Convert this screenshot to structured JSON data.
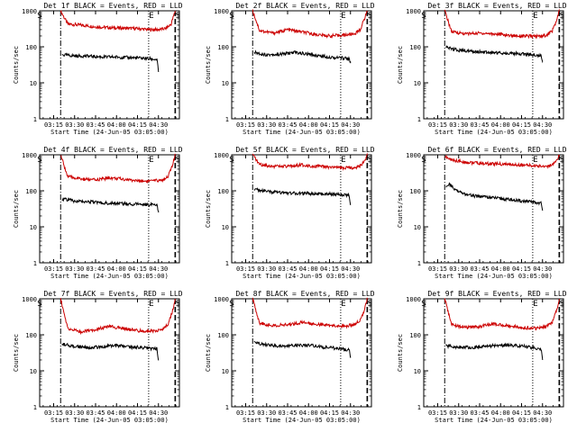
{
  "chart_data": [
    {
      "type": "line",
      "title": "Det 1f BLACK = Events, RED = LLD",
      "xlabel": "Start Time (24-Jun-05 03:05:00)",
      "ylabel": "Counts/sec",
      "yscale": "log",
      "ylim": [
        1,
        1000
      ],
      "xlim": [
        0,
        100
      ],
      "y_ticks": [
        "1",
        "10",
        "100",
        "1000"
      ],
      "x_tick_labels": [
        "03:15",
        "03:30",
        "03:45",
        "04:00",
        "04:15",
        "04:30"
      ],
      "x_tick_values": [
        10,
        25,
        40,
        55,
        70,
        85
      ],
      "markers": [
        {
          "label": "S",
          "x": 0
        },
        {
          "label": "E",
          "x": 80
        },
        {
          "label": "S",
          "x": 99
        }
      ],
      "vlines": [
        {
          "x": 15,
          "style": "dash-dot"
        },
        {
          "x": 78,
          "style": "dotted"
        },
        {
          "x": 97,
          "style": "dashed"
        }
      ],
      "series": [
        {
          "name": "RED = LLD",
          "color": "#cc0000",
          "x": [
            15,
            20,
            30,
            40,
            50,
            60,
            70,
            78,
            85,
            90,
            94,
            97
          ],
          "values": [
            1000,
            430,
            400,
            360,
            340,
            330,
            320,
            300,
            300,
            320,
            420,
            1000
          ]
        },
        {
          "name": "BLACK = Events",
          "color": "#000000",
          "x": [
            16,
            25,
            35,
            45,
            55,
            65,
            75,
            84,
            85
          ],
          "values": [
            60,
            56,
            55,
            52,
            52,
            50,
            48,
            44,
            20
          ]
        }
      ]
    },
    {
      "type": "line",
      "title": "Det 2f BLACK = Events, RED = LLD",
      "xlabel": "Start Time (24-Jun-05 03:05:00)",
      "ylabel": "Counts/sec",
      "yscale": "log",
      "ylim": [
        1,
        1000
      ],
      "xlim": [
        0,
        100
      ],
      "y_ticks": [
        "1",
        "10",
        "100",
        "1000"
      ],
      "x_tick_labels": [
        "03:15",
        "03:30",
        "03:45",
        "04:00",
        "04:15",
        "04:30"
      ],
      "x_tick_values": [
        10,
        25,
        40,
        55,
        70,
        85
      ],
      "markers": [
        {
          "label": "S",
          "x": 0
        },
        {
          "label": "E",
          "x": 80
        },
        {
          "label": "S",
          "x": 99
        }
      ],
      "vlines": [
        {
          "x": 15,
          "style": "dash-dot"
        },
        {
          "x": 78,
          "style": "dotted"
        },
        {
          "x": 97,
          "style": "dashed"
        }
      ],
      "series": [
        {
          "name": "RED = LLD",
          "color": "#cc0000",
          "x": [
            15,
            20,
            30,
            40,
            50,
            60,
            70,
            80,
            88,
            92,
            95,
            97
          ],
          "values": [
            1000,
            280,
            240,
            300,
            260,
            220,
            200,
            210,
            230,
            300,
            600,
            1000
          ]
        },
        {
          "name": "BLACK = Events",
          "color": "#000000",
          "x": [
            16,
            25,
            35,
            45,
            55,
            65,
            75,
            84,
            85
          ],
          "values": [
            70,
            60,
            62,
            70,
            62,
            55,
            50,
            48,
            35
          ]
        }
      ]
    },
    {
      "type": "line",
      "title": "Det 3f BLACK = Events, RED = LLD",
      "xlabel": "Start Time (24-Jun-05 03:05:00)",
      "ylabel": "Counts/sec",
      "yscale": "log",
      "ylim": [
        1,
        1000
      ],
      "xlim": [
        0,
        100
      ],
      "y_ticks": [
        "1",
        "10",
        "100",
        "1000"
      ],
      "x_tick_labels": [
        "03:15",
        "03:30",
        "03:45",
        "04:00",
        "04:15",
        "04:30"
      ],
      "x_tick_values": [
        10,
        25,
        40,
        55,
        70,
        85
      ],
      "markers": [
        {
          "label": "S",
          "x": 0
        },
        {
          "label": "E",
          "x": 80
        },
        {
          "label": "S",
          "x": 99
        }
      ],
      "vlines": [
        {
          "x": 15,
          "style": "dash-dot"
        },
        {
          "x": 78,
          "style": "dotted"
        },
        {
          "x": 97,
          "style": "dashed"
        }
      ],
      "series": [
        {
          "name": "RED = LLD",
          "color": "#cc0000",
          "x": [
            15,
            20,
            30,
            40,
            50,
            60,
            70,
            80,
            88,
            92,
            95,
            97
          ],
          "values": [
            1000,
            260,
            230,
            240,
            230,
            210,
            200,
            195,
            210,
            280,
            520,
            1000
          ]
        },
        {
          "name": "BLACK = Events",
          "color": "#000000",
          "x": [
            16,
            25,
            35,
            45,
            55,
            65,
            75,
            84,
            85
          ],
          "values": [
            95,
            80,
            75,
            70,
            68,
            65,
            62,
            58,
            40
          ]
        }
      ]
    },
    {
      "type": "line",
      "title": "Det 4f BLACK = Events, RED = LLD",
      "xlabel": "Start Time (24-Jun-05 03:05:00)",
      "ylabel": "Counts/sec",
      "yscale": "log",
      "ylim": [
        1,
        1000
      ],
      "xlim": [
        0,
        100
      ],
      "y_ticks": [
        "1",
        "10",
        "100",
        "1000"
      ],
      "x_tick_labels": [
        "03:15",
        "03:30",
        "03:45",
        "04:00",
        "04:15",
        "04:30"
      ],
      "x_tick_values": [
        10,
        25,
        40,
        55,
        70,
        85
      ],
      "markers": [
        {
          "label": "S",
          "x": 0
        },
        {
          "label": "E",
          "x": 80
        },
        {
          "label": "S",
          "x": 99
        }
      ],
      "vlines": [
        {
          "x": 15,
          "style": "dash-dot"
        },
        {
          "x": 78,
          "style": "dotted"
        },
        {
          "x": 97,
          "style": "dashed"
        }
      ],
      "series": [
        {
          "name": "RED = LLD",
          "color": "#cc0000",
          "x": [
            15,
            20,
            30,
            40,
            50,
            60,
            70,
            80,
            88,
            92,
            95,
            97
          ],
          "values": [
            1000,
            250,
            210,
            200,
            230,
            210,
            190,
            185,
            200,
            260,
            500,
            1000
          ]
        },
        {
          "name": "BLACK = Events",
          "color": "#000000",
          "x": [
            16,
            25,
            35,
            45,
            55,
            65,
            75,
            84,
            85
          ],
          "values": [
            60,
            52,
            50,
            46,
            45,
            43,
            42,
            40,
            25
          ]
        }
      ]
    },
    {
      "type": "line",
      "title": "Det 5f BLACK = Events, RED = LLD",
      "xlabel": "Start Time (24-Jun-05 03:05:00)",
      "ylabel": "Counts/sec",
      "yscale": "log",
      "ylim": [
        1,
        1000
      ],
      "xlim": [
        0,
        100
      ],
      "y_ticks": [
        "1",
        "10",
        "100",
        "1000"
      ],
      "x_tick_labels": [
        "03:15",
        "03:30",
        "03:45",
        "04:00",
        "04:15",
        "04:30"
      ],
      "x_tick_values": [
        10,
        25,
        40,
        55,
        70,
        85
      ],
      "markers": [
        {
          "label": "S",
          "x": 0
        },
        {
          "label": "E",
          "x": 80
        },
        {
          "label": "S",
          "x": 99
        }
      ],
      "vlines": [
        {
          "x": 15,
          "style": "dash-dot"
        },
        {
          "x": 78,
          "style": "dotted"
        },
        {
          "x": 97,
          "style": "dashed"
        }
      ],
      "series": [
        {
          "name": "RED = LLD",
          "color": "#cc0000",
          "x": [
            15,
            20,
            30,
            40,
            50,
            60,
            70,
            80,
            88,
            92,
            95,
            97
          ],
          "values": [
            1000,
            540,
            480,
            470,
            520,
            480,
            450,
            430,
            440,
            500,
            650,
            1000
          ]
        },
        {
          "name": "BLACK = Events",
          "color": "#000000",
          "x": [
            16,
            25,
            35,
            45,
            55,
            65,
            75,
            84,
            85
          ],
          "values": [
            110,
            95,
            88,
            85,
            84,
            82,
            80,
            75,
            40
          ]
        }
      ]
    },
    {
      "type": "line",
      "title": "Det 6f BLACK = Events, RED = LLD",
      "xlabel": "Start Time (24-Jun-05 03:05:00)",
      "ylabel": "Counts/sec",
      "yscale": "log",
      "ylim": [
        1,
        1000
      ],
      "xlim": [
        0,
        100
      ],
      "y_ticks": [
        "1",
        "10",
        "100",
        "1000"
      ],
      "x_tick_labels": [
        "03:15",
        "03:30",
        "03:45",
        "04:00",
        "04:15",
        "04:30"
      ],
      "x_tick_values": [
        10,
        25,
        40,
        55,
        70,
        85
      ],
      "markers": [
        {
          "label": "S",
          "x": 0
        },
        {
          "label": "E",
          "x": 80
        },
        {
          "label": "S",
          "x": 99
        }
      ],
      "vlines": [
        {
          "x": 15,
          "style": "dash-dot"
        },
        {
          "x": 78,
          "style": "dotted"
        },
        {
          "x": 97,
          "style": "dashed"
        }
      ],
      "series": [
        {
          "name": "RED = LLD",
          "color": "#cc0000",
          "x": [
            15,
            20,
            30,
            40,
            50,
            60,
            70,
            80,
            88,
            92,
            95,
            97
          ],
          "values": [
            900,
            720,
            620,
            580,
            560,
            540,
            520,
            490,
            480,
            520,
            640,
            1000
          ]
        },
        {
          "name": "BLACK = Events",
          "color": "#000000",
          "x": [
            16,
            18,
            22,
            28,
            35,
            45,
            55,
            65,
            75,
            84,
            85
          ],
          "values": [
            120,
            160,
            110,
            85,
            72,
            68,
            60,
            55,
            50,
            45,
            28
          ]
        }
      ]
    },
    {
      "type": "line",
      "title": "Det 7f BLACK = Events, RED = LLD",
      "xlabel": "Start Time (24-Jun-05 03:05:00)",
      "ylabel": "Counts/sec",
      "yscale": "log",
      "ylim": [
        1,
        1000
      ],
      "xlim": [
        0,
        100
      ],
      "y_ticks": [
        "1",
        "10",
        "100",
        "1000"
      ],
      "x_tick_labels": [
        "03:15",
        "03:30",
        "03:45",
        "04:00",
        "04:15",
        "04:30"
      ],
      "x_tick_values": [
        10,
        25,
        40,
        55,
        70,
        85
      ],
      "markers": [
        {
          "label": "S",
          "x": 0
        },
        {
          "label": "E",
          "x": 80
        },
        {
          "label": "S",
          "x": 99
        }
      ],
      "vlines": [
        {
          "x": 15,
          "style": "dash-dot"
        },
        {
          "x": 78,
          "style": "dotted"
        },
        {
          "x": 97,
          "style": "dashed"
        }
      ],
      "series": [
        {
          "name": "RED = LLD",
          "color": "#cc0000",
          "x": [
            15,
            20,
            30,
            40,
            50,
            60,
            70,
            80,
            88,
            92,
            95,
            97
          ],
          "values": [
            1000,
            150,
            120,
            140,
            170,
            150,
            130,
            125,
            140,
            200,
            450,
            1000
          ]
        },
        {
          "name": "BLACK = Events",
          "color": "#000000",
          "x": [
            16,
            25,
            35,
            45,
            55,
            65,
            75,
            84,
            85
          ],
          "values": [
            55,
            48,
            44,
            47,
            50,
            46,
            44,
            40,
            20
          ]
        }
      ]
    },
    {
      "type": "line",
      "title": "Det 8f BLACK = Events, RED = LLD",
      "xlabel": "Start Time (24-Jun-05 03:05:00)",
      "ylabel": "Counts/sec",
      "yscale": "log",
      "ylim": [
        1,
        1000
      ],
      "xlim": [
        0,
        100
      ],
      "y_ticks": [
        "1",
        "10",
        "100",
        "1000"
      ],
      "x_tick_labels": [
        "03:15",
        "03:30",
        "03:45",
        "04:00",
        "04:15",
        "04:30"
      ],
      "x_tick_values": [
        10,
        25,
        40,
        55,
        70,
        85
      ],
      "markers": [
        {
          "label": "S",
          "x": 0
        },
        {
          "label": "E",
          "x": 80
        },
        {
          "label": "S",
          "x": 99
        }
      ],
      "vlines": [
        {
          "x": 15,
          "style": "dash-dot"
        },
        {
          "x": 78,
          "style": "dotted"
        },
        {
          "x": 97,
          "style": "dashed"
        }
      ],
      "series": [
        {
          "name": "RED = LLD",
          "color": "#cc0000",
          "x": [
            15,
            20,
            30,
            40,
            50,
            60,
            70,
            80,
            88,
            92,
            95,
            97
          ],
          "values": [
            1000,
            210,
            180,
            190,
            220,
            200,
            180,
            175,
            190,
            260,
            500,
            1000
          ]
        },
        {
          "name": "BLACK = Events",
          "color": "#000000",
          "x": [
            16,
            25,
            35,
            45,
            55,
            65,
            75,
            84,
            85
          ],
          "values": [
            60,
            52,
            48,
            50,
            52,
            46,
            42,
            38,
            25
          ]
        }
      ]
    },
    {
      "type": "line",
      "title": "Det 9f BLACK = Events, RED = LLD",
      "xlabel": "Start Time (24-Jun-05 03:05:00)",
      "ylabel": "Counts/sec",
      "yscale": "log",
      "ylim": [
        1,
        1000
      ],
      "xlim": [
        0,
        100
      ],
      "y_ticks": [
        "1",
        "10",
        "100",
        "1000"
      ],
      "x_tick_labels": [
        "03:15",
        "03:30",
        "03:45",
        "04:00",
        "04:15",
        "04:30"
      ],
      "x_tick_values": [
        10,
        25,
        40,
        55,
        70,
        85
      ],
      "markers": [
        {
          "label": "S",
          "x": 0
        },
        {
          "label": "E",
          "x": 80
        },
        {
          "label": "S",
          "x": 99
        }
      ],
      "vlines": [
        {
          "x": 15,
          "style": "dash-dot"
        },
        {
          "x": 78,
          "style": "dotted"
        },
        {
          "x": 97,
          "style": "dashed"
        }
      ],
      "series": [
        {
          "name": "RED = LLD",
          "color": "#cc0000",
          "x": [
            15,
            20,
            30,
            40,
            50,
            60,
            70,
            80,
            88,
            92,
            95,
            97
          ],
          "values": [
            1000,
            190,
            160,
            170,
            200,
            180,
            160,
            150,
            170,
            230,
            480,
            1000
          ]
        },
        {
          "name": "BLACK = Events",
          "color": "#000000",
          "x": [
            16,
            25,
            35,
            45,
            55,
            65,
            75,
            84,
            85
          ],
          "values": [
            50,
            46,
            45,
            48,
            52,
            50,
            46,
            40,
            20
          ]
        }
      ]
    }
  ]
}
